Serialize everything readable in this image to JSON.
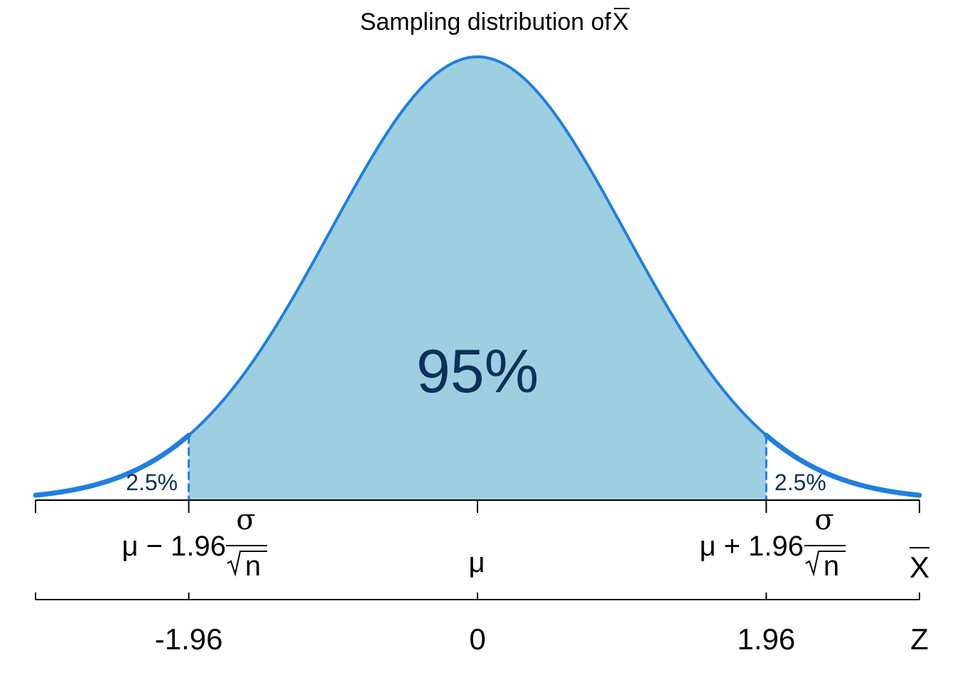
{
  "colors": {
    "curve": "#1f7fe0",
    "fill": "#9ecfe1",
    "text_dark": "#0d2f5c",
    "axis": "#000000"
  },
  "chart_data": {
    "type": "area",
    "title": "Sampling distribution of X̄",
    "title_prefix": "Sampling distribution of ",
    "title_symbol": "X",
    "distribution": "standard normal",
    "xlim": [
      -3.0,
      3.0
    ],
    "critical_values": [
      -1.96,
      1.96
    ],
    "shaded_region": {
      "from": -1.96,
      "to": 1.96,
      "label": "95%",
      "value": 0.95
    },
    "tail_regions": [
      {
        "from": -3.0,
        "to": -1.96,
        "label": "2.5%",
        "value": 0.025
      },
      {
        "from": 1.96,
        "to": 3.0,
        "label": "2.5%",
        "value": 0.025
      }
    ],
    "axes": [
      {
        "name": "X",
        "label": "X",
        "ticks": [
          {
            "at": -1.96,
            "prefix": "μ − 1.96",
            "numerator": "σ",
            "denominator": "n"
          },
          {
            "at": 0,
            "prefix": "μ"
          },
          {
            "at": 1.96,
            "prefix": "μ + 1.96",
            "numerator": "σ",
            "denominator": "n"
          }
        ]
      },
      {
        "name": "Z",
        "label": "Z",
        "ticks": [
          {
            "at": -1.96,
            "label": "-1.96"
          },
          {
            "at": 0,
            "label": "0"
          },
          {
            "at": 1.96,
            "label": "1.96"
          }
        ]
      }
    ]
  }
}
